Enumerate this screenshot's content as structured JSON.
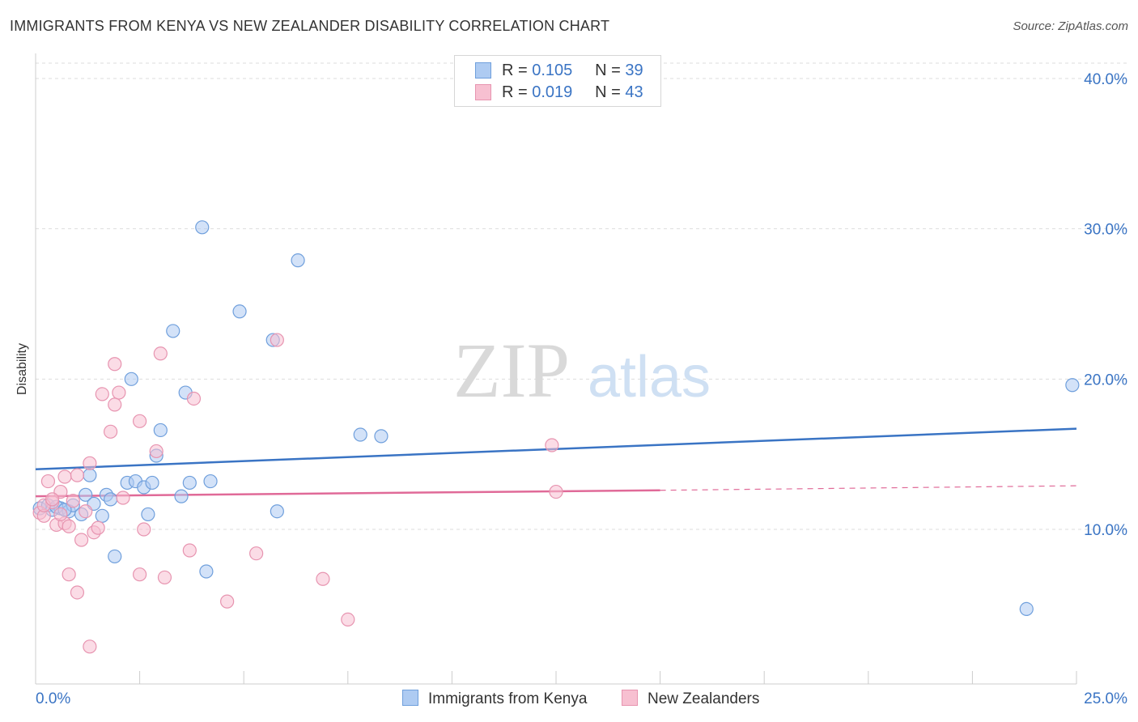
{
  "title": "IMMIGRANTS FROM KENYA VS NEW ZEALANDER DISABILITY CORRELATION CHART",
  "source": "Source: ZipAtlas.com",
  "watermark": {
    "zip": "ZIP",
    "atlas": "atlas"
  },
  "legend": {
    "r_label": "R =",
    "n_label": "N =",
    "rows": [
      {
        "r": "0.105",
        "n": "39"
      },
      {
        "r": "0.019",
        "n": "43"
      }
    ]
  },
  "colors": {
    "series1_fill": "#aecbf2",
    "series1_stroke": "#6f9fdc",
    "series1_line": "#3a74c4",
    "series2_fill": "#f7c0d1",
    "series2_stroke": "#e794b0",
    "series2_line": "#e06a98",
    "axis_label": "#3a74c4",
    "grid": "#dddddd"
  },
  "chart_data": {
    "type": "scatter",
    "title": "IMMIGRANTS FROM KENYA VS NEW ZEALANDER DISABILITY CORRELATION CHART",
    "xlabel": "",
    "ylabel": "Disability",
    "xlim": [
      0,
      25
    ],
    "ylim": [
      0,
      42
    ],
    "x_tick_labels": [
      "0.0%",
      "25.0%"
    ],
    "y_ticks": [
      10,
      20,
      30,
      40
    ],
    "y_tick_labels": [
      "10.0%",
      "20.0%",
      "30.0%",
      "40.0%"
    ],
    "grid": true,
    "legend_position": "top-center",
    "series": [
      {
        "name": "Immigrants from Kenya",
        "points": [
          [
            0.1,
            11.4
          ],
          [
            0.3,
            11.6
          ],
          [
            0.4,
            11.3
          ],
          [
            0.6,
            11.4
          ],
          [
            0.8,
            11.2
          ],
          [
            0.9,
            11.6
          ],
          [
            1.1,
            11.0
          ],
          [
            1.2,
            12.3
          ],
          [
            1.3,
            13.6
          ],
          [
            1.4,
            11.7
          ],
          [
            1.6,
            10.9
          ],
          [
            1.7,
            12.3
          ],
          [
            1.8,
            12.0
          ],
          [
            1.9,
            8.2
          ],
          [
            2.2,
            13.1
          ],
          [
            2.3,
            20.0
          ],
          [
            2.4,
            13.2
          ],
          [
            2.6,
            12.8
          ],
          [
            2.7,
            11.0
          ],
          [
            2.8,
            13.1
          ],
          [
            2.9,
            14.9
          ],
          [
            3.0,
            16.6
          ],
          [
            3.3,
            23.2
          ],
          [
            3.5,
            12.2
          ],
          [
            3.6,
            19.1
          ],
          [
            3.7,
            13.1
          ],
          [
            4.0,
            30.1
          ],
          [
            4.1,
            7.2
          ],
          [
            4.2,
            13.2
          ],
          [
            4.9,
            24.5
          ],
          [
            5.7,
            22.6
          ],
          [
            5.8,
            11.2
          ],
          [
            6.3,
            27.9
          ],
          [
            7.8,
            16.3
          ],
          [
            8.3,
            16.2
          ],
          [
            23.8,
            4.7
          ],
          [
            24.9,
            19.6
          ],
          [
            0.5,
            11.5
          ],
          [
            0.7,
            11.3
          ]
        ]
      },
      {
        "name": "New Zealanders",
        "points": [
          [
            0.1,
            11.1
          ],
          [
            0.2,
            10.9
          ],
          [
            0.3,
            13.2
          ],
          [
            0.4,
            11.8
          ],
          [
            0.5,
            10.3
          ],
          [
            0.6,
            12.5
          ],
          [
            0.7,
            10.4
          ],
          [
            0.7,
            13.5
          ],
          [
            0.8,
            10.2
          ],
          [
            0.8,
            7.0
          ],
          [
            0.9,
            11.9
          ],
          [
            1.0,
            13.6
          ],
          [
            1.0,
            5.8
          ],
          [
            1.1,
            9.3
          ],
          [
            1.2,
            11.2
          ],
          [
            1.3,
            14.4
          ],
          [
            1.3,
            2.2
          ],
          [
            1.4,
            9.8
          ],
          [
            1.5,
            10.1
          ],
          [
            1.6,
            19.0
          ],
          [
            1.8,
            16.5
          ],
          [
            1.9,
            18.3
          ],
          [
            1.9,
            21.0
          ],
          [
            2.0,
            19.1
          ],
          [
            2.1,
            12.1
          ],
          [
            2.5,
            17.2
          ],
          [
            2.5,
            7.0
          ],
          [
            2.6,
            10.0
          ],
          [
            2.9,
            15.2
          ],
          [
            3.0,
            21.7
          ],
          [
            3.1,
            6.8
          ],
          [
            3.7,
            8.6
          ],
          [
            3.8,
            18.7
          ],
          [
            4.6,
            5.2
          ],
          [
            5.3,
            8.4
          ],
          [
            5.8,
            22.6
          ],
          [
            6.9,
            6.7
          ],
          [
            7.5,
            4.0
          ],
          [
            12.4,
            15.6
          ],
          [
            12.5,
            12.5
          ],
          [
            0.2,
            11.6
          ],
          [
            0.4,
            12.0
          ],
          [
            0.6,
            11.0
          ]
        ]
      }
    ],
    "trend_lines": [
      {
        "name": "Immigrants from Kenya",
        "x": [
          0,
          25
        ],
        "y": [
          14.0,
          16.7
        ]
      },
      {
        "name": "New Zealanders",
        "x": [
          0,
          15
        ],
        "y": [
          12.2,
          12.6
        ],
        "dashed_to": [
          25,
          12.9
        ]
      }
    ]
  }
}
